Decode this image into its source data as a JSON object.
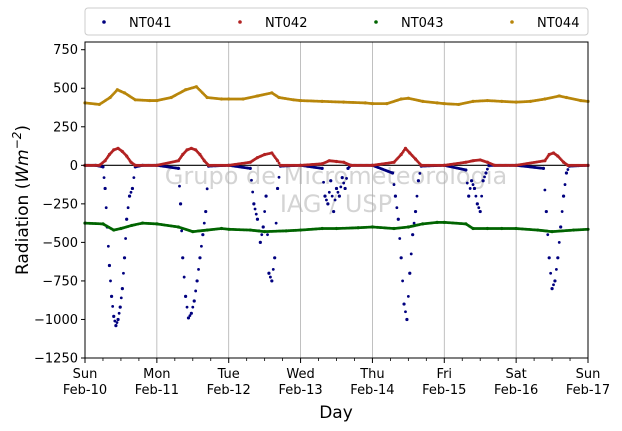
{
  "chart_data": {
    "type": "scatter",
    "title": "",
    "xlabel": "Day",
    "ylabel_prefix": "Radiation (",
    "ylabel_unit": "Wm",
    "ylabel_exp": "−2",
    "ylabel_suffix": ")",
    "ylim": [
      -1250,
      800
    ],
    "yticks": [
      -1250,
      -1000,
      -750,
      -500,
      -250,
      0,
      250,
      500,
      750
    ],
    "xlim": [
      0,
      7
    ],
    "xticks": [
      {
        "x": 0,
        "line1": "Sun",
        "line2": "Feb-10"
      },
      {
        "x": 1,
        "line1": "Mon",
        "line2": "Feb-11"
      },
      {
        "x": 2,
        "line1": "Tue",
        "line2": "Feb-12"
      },
      {
        "x": 3,
        "line1": "Wed",
        "line2": "Feb-13"
      },
      {
        "x": 4,
        "line1": "Thu",
        "line2": "Feb-14"
      },
      {
        "x": 5,
        "line1": "Fri",
        "line2": "Feb-15"
      },
      {
        "x": 6,
        "line1": "Sat",
        "line2": "Feb-16"
      },
      {
        "x": 7,
        "line1": "Sun",
        "line2": "Feb-17"
      }
    ],
    "x_units_note_removed": true,
    "grid": "vertical",
    "legend_position": "top",
    "zero_line": true,
    "watermark": [
      "Grupo de Micrometeorologia",
      "IAG / USP"
    ],
    "series": [
      {
        "name": "NT041",
        "color": "#00007f",
        "points": [
          [
            0.0,
            0
          ],
          [
            0.15,
            0
          ],
          [
            0.25,
            -10
          ],
          [
            0.28,
            -150
          ],
          [
            0.31,
            -400
          ],
          [
            0.34,
            -650
          ],
          [
            0.37,
            -850
          ],
          [
            0.4,
            -980
          ],
          [
            0.43,
            -1040
          ],
          [
            0.46,
            -1000
          ],
          [
            0.49,
            -920
          ],
          [
            0.52,
            -800
          ],
          [
            0.55,
            -600
          ],
          [
            0.58,
            -350
          ],
          [
            0.62,
            -200
          ],
          [
            0.66,
            -150
          ],
          [
            0.7,
            -10
          ],
          [
            0.8,
            0
          ],
          [
            1.0,
            0
          ],
          [
            1.3,
            -20
          ],
          [
            1.33,
            -250
          ],
          [
            1.36,
            -600
          ],
          [
            1.4,
            -850
          ],
          [
            1.44,
            -990
          ],
          [
            1.48,
            -960
          ],
          [
            1.52,
            -880
          ],
          [
            1.56,
            -750
          ],
          [
            1.6,
            -600
          ],
          [
            1.64,
            -450
          ],
          [
            1.68,
            -300
          ],
          [
            1.72,
            -5
          ],
          [
            2.0,
            0
          ],
          [
            2.3,
            -20
          ],
          [
            2.35,
            -250
          ],
          [
            2.4,
            -350
          ],
          [
            2.44,
            -500
          ],
          [
            2.48,
            -400
          ],
          [
            2.52,
            -200
          ],
          [
            2.56,
            -700
          ],
          [
            2.6,
            -750
          ],
          [
            2.64,
            -600
          ],
          [
            2.68,
            -150
          ],
          [
            2.72,
            -5
          ],
          [
            3.0,
            0
          ],
          [
            3.3,
            -20
          ],
          [
            3.34,
            -200
          ],
          [
            3.38,
            -250
          ],
          [
            3.42,
            -100
          ],
          [
            3.46,
            -300
          ],
          [
            3.5,
            -150
          ],
          [
            3.54,
            -200
          ],
          [
            3.58,
            -80
          ],
          [
            3.62,
            -150
          ],
          [
            3.66,
            -20
          ],
          [
            3.7,
            0
          ],
          [
            4.0,
            0
          ],
          [
            4.28,
            -50
          ],
          [
            4.32,
            -200
          ],
          [
            4.36,
            -350
          ],
          [
            4.4,
            -600
          ],
          [
            4.44,
            -900
          ],
          [
            4.48,
            -1000
          ],
          [
            4.52,
            -700
          ],
          [
            4.56,
            -450
          ],
          [
            4.6,
            -300
          ],
          [
            4.64,
            -100
          ],
          [
            4.68,
            -5
          ],
          [
            5.0,
            0
          ],
          [
            5.3,
            -30
          ],
          [
            5.34,
            -200
          ],
          [
            5.38,
            -100
          ],
          [
            5.42,
            -150
          ],
          [
            5.46,
            -250
          ],
          [
            5.5,
            -300
          ],
          [
            5.54,
            -100
          ],
          [
            5.58,
            -50
          ],
          [
            5.62,
            0
          ],
          [
            6.0,
            0
          ],
          [
            6.38,
            -20
          ],
          [
            6.42,
            -300
          ],
          [
            6.46,
            -600
          ],
          [
            6.5,
            -800
          ],
          [
            6.54,
            -750
          ],
          [
            6.58,
            -600
          ],
          [
            6.62,
            -400
          ],
          [
            6.66,
            -200
          ],
          [
            6.7,
            -50
          ],
          [
            6.74,
            -5
          ],
          [
            7.0,
            0
          ]
        ]
      },
      {
        "name": "NT042",
        "color": "#b22222",
        "points": [
          [
            0.0,
            0
          ],
          [
            0.2,
            0
          ],
          [
            0.28,
            30
          ],
          [
            0.34,
            70
          ],
          [
            0.4,
            100
          ],
          [
            0.46,
            110
          ],
          [
            0.52,
            90
          ],
          [
            0.58,
            60
          ],
          [
            0.64,
            20
          ],
          [
            0.7,
            0
          ],
          [
            1.0,
            0
          ],
          [
            1.3,
            30
          ],
          [
            1.36,
            70
          ],
          [
            1.42,
            100
          ],
          [
            1.48,
            110
          ],
          [
            1.54,
            100
          ],
          [
            1.6,
            70
          ],
          [
            1.66,
            30
          ],
          [
            1.72,
            0
          ],
          [
            2.0,
            0
          ],
          [
            2.3,
            20
          ],
          [
            2.4,
            50
          ],
          [
            2.5,
            70
          ],
          [
            2.6,
            80
          ],
          [
            2.68,
            30
          ],
          [
            2.72,
            0
          ],
          [
            3.0,
            0
          ],
          [
            3.3,
            10
          ],
          [
            3.4,
            30
          ],
          [
            3.5,
            25
          ],
          [
            3.6,
            20
          ],
          [
            3.7,
            0
          ],
          [
            4.0,
            0
          ],
          [
            4.3,
            20
          ],
          [
            4.4,
            70
          ],
          [
            4.46,
            110
          ],
          [
            4.52,
            80
          ],
          [
            4.6,
            40
          ],
          [
            4.68,
            0
          ],
          [
            5.0,
            0
          ],
          [
            5.3,
            20
          ],
          [
            5.4,
            30
          ],
          [
            5.5,
            35
          ],
          [
            5.6,
            20
          ],
          [
            5.7,
            0
          ],
          [
            6.0,
            0
          ],
          [
            6.4,
            30
          ],
          [
            6.46,
            70
          ],
          [
            6.52,
            80
          ],
          [
            6.58,
            60
          ],
          [
            6.66,
            20
          ],
          [
            6.72,
            0
          ],
          [
            7.0,
            0
          ]
        ]
      },
      {
        "name": "NT043",
        "color": "#006400",
        "points": [
          [
            0.0,
            -375
          ],
          [
            0.25,
            -380
          ],
          [
            0.4,
            -420
          ],
          [
            0.5,
            -410
          ],
          [
            0.65,
            -390
          ],
          [
            0.8,
            -375
          ],
          [
            1.0,
            -380
          ],
          [
            1.3,
            -400
          ],
          [
            1.5,
            -430
          ],
          [
            1.7,
            -420
          ],
          [
            1.9,
            -410
          ],
          [
            2.0,
            -415
          ],
          [
            2.3,
            -420
          ],
          [
            2.5,
            -430
          ],
          [
            2.8,
            -425
          ],
          [
            3.0,
            -420
          ],
          [
            3.3,
            -410
          ],
          [
            3.5,
            -410
          ],
          [
            3.8,
            -405
          ],
          [
            4.0,
            -400
          ],
          [
            4.3,
            -410
          ],
          [
            4.5,
            -400
          ],
          [
            4.7,
            -380
          ],
          [
            4.9,
            -370
          ],
          [
            5.0,
            -370
          ],
          [
            5.3,
            -380
          ],
          [
            5.4,
            -410
          ],
          [
            5.6,
            -410
          ],
          [
            5.8,
            -410
          ],
          [
            6.0,
            -410
          ],
          [
            6.3,
            -420
          ],
          [
            6.5,
            -430
          ],
          [
            6.8,
            -420
          ],
          [
            7.0,
            -415
          ]
        ]
      },
      {
        "name": "NT044",
        "color": "#b8860b",
        "points": [
          [
            0.0,
            405
          ],
          [
            0.2,
            395
          ],
          [
            0.35,
            440
          ],
          [
            0.45,
            490
          ],
          [
            0.55,
            470
          ],
          [
            0.7,
            425
          ],
          [
            0.9,
            420
          ],
          [
            1.0,
            420
          ],
          [
            1.2,
            440
          ],
          [
            1.4,
            490
          ],
          [
            1.55,
            510
          ],
          [
            1.7,
            440
          ],
          [
            1.9,
            430
          ],
          [
            2.0,
            430
          ],
          [
            2.2,
            430
          ],
          [
            2.4,
            450
          ],
          [
            2.6,
            470
          ],
          [
            2.7,
            440
          ],
          [
            2.9,
            425
          ],
          [
            3.0,
            420
          ],
          [
            3.3,
            415
          ],
          [
            3.6,
            410
          ],
          [
            3.9,
            405
          ],
          [
            4.0,
            400
          ],
          [
            4.2,
            400
          ],
          [
            4.4,
            430
          ],
          [
            4.5,
            435
          ],
          [
            4.7,
            415
          ],
          [
            4.9,
            405
          ],
          [
            5.0,
            400
          ],
          [
            5.2,
            395
          ],
          [
            5.4,
            415
          ],
          [
            5.6,
            420
          ],
          [
            5.8,
            415
          ],
          [
            6.0,
            410
          ],
          [
            6.2,
            415
          ],
          [
            6.4,
            430
          ],
          [
            6.6,
            450
          ],
          [
            6.7,
            440
          ],
          [
            6.9,
            420
          ],
          [
            7.0,
            415
          ]
        ]
      }
    ]
  }
}
